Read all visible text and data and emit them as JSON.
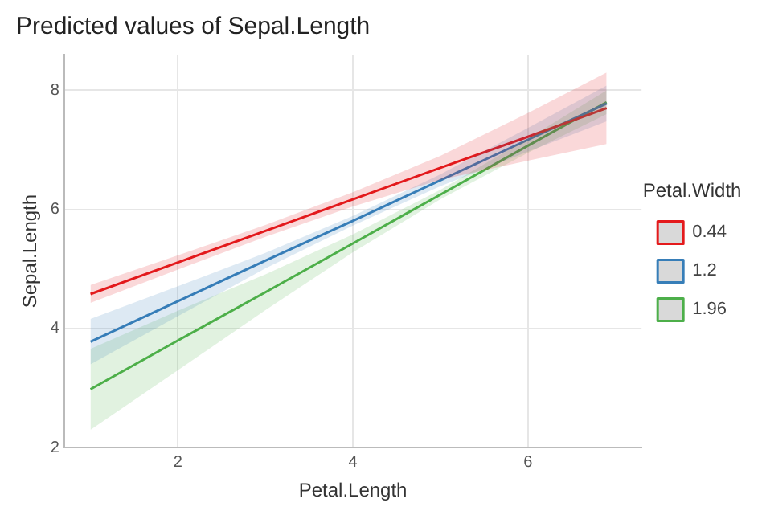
{
  "chart_data": {
    "type": "line",
    "title": "Predicted values of Sepal.Length",
    "xlabel": "Petal.Length",
    "ylabel": "Sepal.Length",
    "legend_title": "Petal.Width",
    "x": [
      1,
      2,
      3,
      4,
      5,
      6,
      6.9
    ],
    "series": [
      {
        "name": "0.44",
        "color": "#e41a1c",
        "values": [
          4.58,
          5.11,
          5.64,
          6.17,
          6.7,
          7.22,
          7.7
        ],
        "lower": [
          4.43,
          4.99,
          5.54,
          6.05,
          6.5,
          6.82,
          7.1
        ],
        "upper": [
          4.73,
          5.23,
          5.74,
          6.29,
          6.9,
          7.62,
          8.3
        ]
      },
      {
        "name": "1.2",
        "color": "#377eb8",
        "values": [
          3.78,
          4.46,
          5.14,
          5.81,
          6.49,
          7.17,
          7.78
        ],
        "lower": [
          3.4,
          4.21,
          5.01,
          5.73,
          6.39,
          6.97,
          7.48
        ],
        "upper": [
          4.16,
          4.71,
          5.27,
          5.89,
          6.59,
          7.37,
          8.08
        ]
      },
      {
        "name": "1.96",
        "color": "#4daf4a",
        "values": [
          2.98,
          3.8,
          4.61,
          5.43,
          6.25,
          7.07,
          7.8
        ],
        "lower": [
          2.3,
          3.3,
          4.31,
          5.28,
          6.17,
          6.95,
          7.6
        ],
        "upper": [
          3.66,
          4.3,
          4.91,
          5.58,
          6.33,
          7.19,
          8.0
        ]
      }
    ],
    "xlim": [
      0.7,
      7.3
    ],
    "ylim": [
      2,
      8.6
    ],
    "xticks": [
      2,
      4,
      6
    ],
    "yticks": [
      2,
      4,
      6,
      8
    ],
    "grid": true,
    "legend": "right",
    "marker": "none",
    "line_style": "solid"
  }
}
